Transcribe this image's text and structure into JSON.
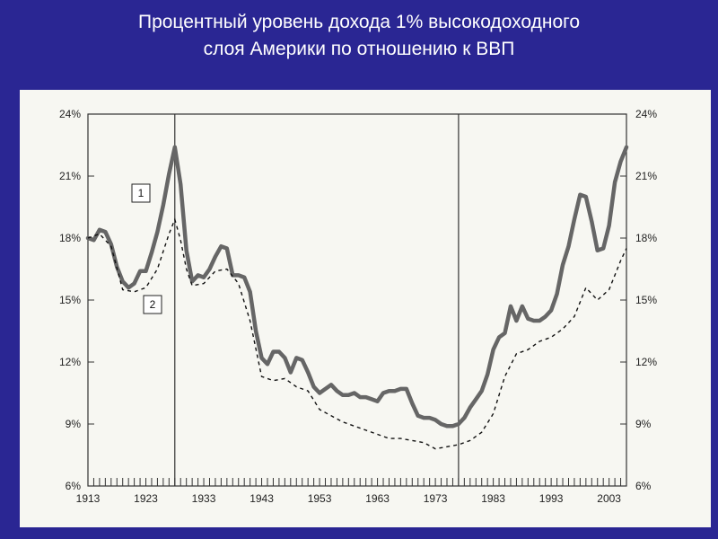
{
  "slide": {
    "title_line1": "Процентный уровень дохода 1% высокодоходного",
    "title_line2": "слоя Америки по отношению к ВВП"
  },
  "colors": {
    "background": "#2a2693",
    "panel": "#f7f7f2",
    "series1": "#666666",
    "series2": "#111111"
  },
  "chart_data": {
    "type": "line",
    "title": "",
    "xlabel": "",
    "ylabel": "",
    "xlim": [
      1913,
      2006
    ],
    "ylim": [
      6,
      24
    ],
    "x_ticks": [
      1913,
      1923,
      1933,
      1943,
      1953,
      1963,
      1973,
      1983,
      1993,
      2003
    ],
    "y_ticks": [
      6,
      9,
      12,
      15,
      18,
      21,
      24
    ],
    "y_tick_labels": [
      "6%",
      "9%",
      "12%",
      "15%",
      "18%",
      "21%",
      "24%"
    ],
    "vertical_lines": [
      1928,
      1977
    ],
    "grid": false,
    "series_labels": [
      "1",
      "2"
    ],
    "series": [
      {
        "label": "1",
        "name": "",
        "style": "solid-thick",
        "points": [
          [
            1913,
            18.0
          ],
          [
            1914,
            17.9
          ],
          [
            1915,
            18.4
          ],
          [
            1916,
            18.3
          ],
          [
            1917,
            17.7
          ],
          [
            1918,
            16.6
          ],
          [
            1919,
            15.9
          ],
          [
            1920,
            15.6
          ],
          [
            1921,
            15.8
          ],
          [
            1922,
            16.4
          ],
          [
            1923,
            16.4
          ],
          [
            1924,
            17.3
          ],
          [
            1925,
            18.3
          ],
          [
            1926,
            19.6
          ],
          [
            1927,
            21.1
          ],
          [
            1928,
            22.4
          ],
          [
            1929,
            20.6
          ],
          [
            1930,
            17.4
          ],
          [
            1931,
            15.9
          ],
          [
            1932,
            16.2
          ],
          [
            1933,
            16.1
          ],
          [
            1934,
            16.5
          ],
          [
            1935,
            17.1
          ],
          [
            1936,
            17.6
          ],
          [
            1937,
            17.5
          ],
          [
            1938,
            16.2
          ],
          [
            1939,
            16.2
          ],
          [
            1940,
            16.1
          ],
          [
            1941,
            15.4
          ],
          [
            1942,
            13.5
          ],
          [
            1943,
            12.2
          ],
          [
            1944,
            11.9
          ],
          [
            1945,
            12.5
          ],
          [
            1946,
            12.5
          ],
          [
            1947,
            12.2
          ],
          [
            1948,
            11.5
          ],
          [
            1949,
            12.2
          ],
          [
            1950,
            12.1
          ],
          [
            1951,
            11.5
          ],
          [
            1952,
            10.8
          ],
          [
            1953,
            10.5
          ],
          [
            1954,
            10.7
          ],
          [
            1955,
            10.9
          ],
          [
            1956,
            10.6
          ],
          [
            1957,
            10.4
          ],
          [
            1958,
            10.4
          ],
          [
            1959,
            10.5
          ],
          [
            1960,
            10.3
          ],
          [
            1961,
            10.3
          ],
          [
            1962,
            10.2
          ],
          [
            1963,
            10.1
          ],
          [
            1964,
            10.5
          ],
          [
            1965,
            10.6
          ],
          [
            1966,
            10.6
          ],
          [
            1967,
            10.7
          ],
          [
            1968,
            10.7
          ],
          [
            1969,
            10.0
          ],
          [
            1970,
            9.4
          ],
          [
            1971,
            9.3
          ],
          [
            1972,
            9.3
          ],
          [
            1973,
            9.2
          ],
          [
            1974,
            9.0
          ],
          [
            1975,
            8.9
          ],
          [
            1976,
            8.9
          ],
          [
            1977,
            9.0
          ],
          [
            1978,
            9.3
          ],
          [
            1979,
            9.8
          ],
          [
            1980,
            10.2
          ],
          [
            1981,
            10.6
          ],
          [
            1982,
            11.4
          ],
          [
            1983,
            12.6
          ],
          [
            1984,
            13.2
          ],
          [
            1985,
            13.4
          ],
          [
            1986,
            14.7
          ],
          [
            1987,
            14.0
          ],
          [
            1988,
            14.7
          ],
          [
            1989,
            14.1
          ],
          [
            1990,
            14.0
          ],
          [
            1991,
            14.0
          ],
          [
            1992,
            14.2
          ],
          [
            1993,
            14.5
          ],
          [
            1994,
            15.3
          ],
          [
            1995,
            16.7
          ],
          [
            1996,
            17.6
          ],
          [
            1997,
            18.9
          ],
          [
            1998,
            20.1
          ],
          [
            1999,
            20.0
          ],
          [
            2000,
            18.8
          ],
          [
            2001,
            17.4
          ],
          [
            2002,
            17.5
          ],
          [
            2003,
            18.6
          ],
          [
            2004,
            20.7
          ],
          [
            2005,
            21.7
          ],
          [
            2006,
            22.4
          ]
        ]
      },
      {
        "label": "2",
        "name": "",
        "style": "dashed",
        "points": [
          [
            1913,
            18.0
          ],
          [
            1915,
            18.2
          ],
          [
            1917,
            17.6
          ],
          [
            1919,
            15.5
          ],
          [
            1921,
            15.4
          ],
          [
            1923,
            15.6
          ],
          [
            1925,
            16.5
          ],
          [
            1927,
            18.2
          ],
          [
            1928,
            18.9
          ],
          [
            1929,
            17.9
          ],
          [
            1930,
            16.5
          ],
          [
            1931,
            15.7
          ],
          [
            1933,
            15.8
          ],
          [
            1935,
            16.4
          ],
          [
            1937,
            16.5
          ],
          [
            1939,
            15.8
          ],
          [
            1941,
            14.0
          ],
          [
            1943,
            11.3
          ],
          [
            1945,
            11.1
          ],
          [
            1947,
            11.2
          ],
          [
            1949,
            10.8
          ],
          [
            1951,
            10.6
          ],
          [
            1953,
            9.7
          ],
          [
            1955,
            9.4
          ],
          [
            1957,
            9.1
          ],
          [
            1959,
            8.9
          ],
          [
            1961,
            8.7
          ],
          [
            1963,
            8.5
          ],
          [
            1965,
            8.3
          ],
          [
            1967,
            8.3
          ],
          [
            1969,
            8.2
          ],
          [
            1971,
            8.1
          ],
          [
            1973,
            7.8
          ],
          [
            1975,
            7.9
          ],
          [
            1977,
            8.0
          ],
          [
            1979,
            8.2
          ],
          [
            1981,
            8.6
          ],
          [
            1983,
            9.5
          ],
          [
            1985,
            11.3
          ],
          [
            1987,
            12.4
          ],
          [
            1989,
            12.6
          ],
          [
            1991,
            13.0
          ],
          [
            1993,
            13.2
          ],
          [
            1995,
            13.6
          ],
          [
            1997,
            14.2
          ],
          [
            1999,
            15.6
          ],
          [
            2001,
            15.0
          ],
          [
            2003,
            15.5
          ],
          [
            2005,
            16.9
          ],
          [
            2006,
            17.5
          ]
        ]
      }
    ]
  }
}
